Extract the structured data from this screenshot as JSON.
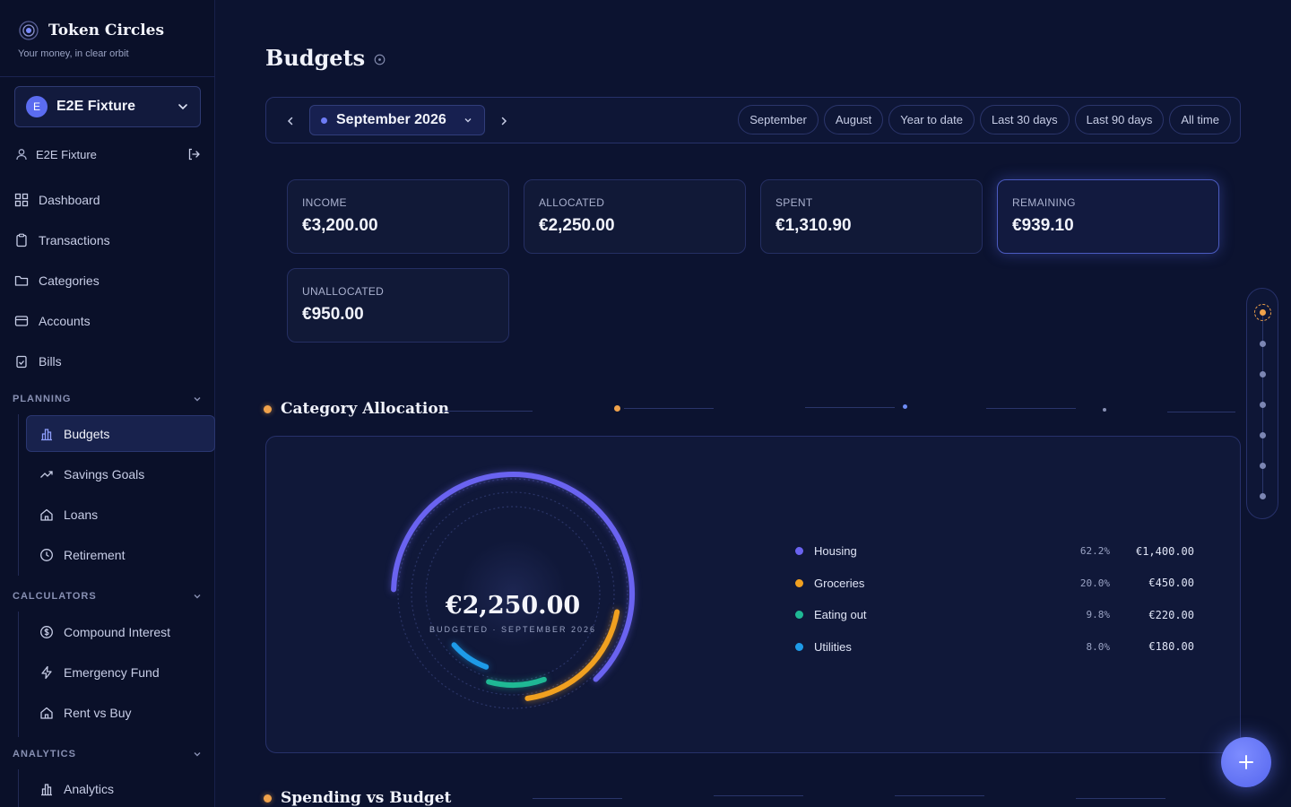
{
  "brand": {
    "name": "Token Circles",
    "tagline": "Your money, in clear orbit"
  },
  "workspace": {
    "initial": "E",
    "name": "E2E Fixture"
  },
  "user": {
    "name": "E2E Fixture"
  },
  "nav": {
    "dashboard": "Dashboard",
    "transactions": "Transactions",
    "categories": "Categories",
    "accounts": "Accounts",
    "bills": "Bills",
    "planning": "PLANNING",
    "budgets": "Budgets",
    "savings_goals": "Savings Goals",
    "loans": "Loans",
    "retirement": "Retirement",
    "calculators": "CALCULATORS",
    "compound_interest": "Compound Interest",
    "emergency_fund": "Emergency Fund",
    "rent_vs_buy": "Rent vs Buy",
    "analytics_header": "ANALYTICS",
    "analytics": "Analytics"
  },
  "page": {
    "title": "Budgets"
  },
  "period": {
    "selected": "September 2026",
    "chips": [
      "September",
      "August",
      "Year to date",
      "Last 30 days",
      "Last 90 days",
      "All time"
    ]
  },
  "stats": {
    "income": {
      "label": "INCOME",
      "value": "€3,200.00"
    },
    "allocated": {
      "label": "ALLOCATED",
      "value": "€2,250.00"
    },
    "spent": {
      "label": "SPENT",
      "value": "€1,310.90"
    },
    "remaining": {
      "label": "REMAINING",
      "value": "€939.10"
    },
    "unallocated": {
      "label": "UNALLOCATED",
      "value": "€950.00"
    }
  },
  "allocation": {
    "title": "Category Allocation",
    "total": "€2,250.00",
    "subtitle": "BUDGETED · SEPTEMBER 2026",
    "categories": [
      {
        "name": "Housing",
        "pct": "62.2%",
        "amount": "€1,400.00",
        "fraction": 0.622,
        "color": "#6a63f0"
      },
      {
        "name": "Groceries",
        "pct": "20.0%",
        "amount": "€450.00",
        "fraction": 0.2,
        "color": "#f0a020"
      },
      {
        "name": "Eating out",
        "pct": "9.8%",
        "amount": "€220.00",
        "fraction": 0.098,
        "color": "#1fb894"
      },
      {
        "name": "Utilities",
        "pct": "8.0%",
        "amount": "€180.00",
        "fraction": 0.08,
        "color": "#1e9be8"
      }
    ]
  },
  "spending": {
    "title": "Spending vs Budget"
  },
  "colors": {
    "background": "#0c1330",
    "accent": "#6a63f0",
    "highlight": "#f0a24b"
  }
}
